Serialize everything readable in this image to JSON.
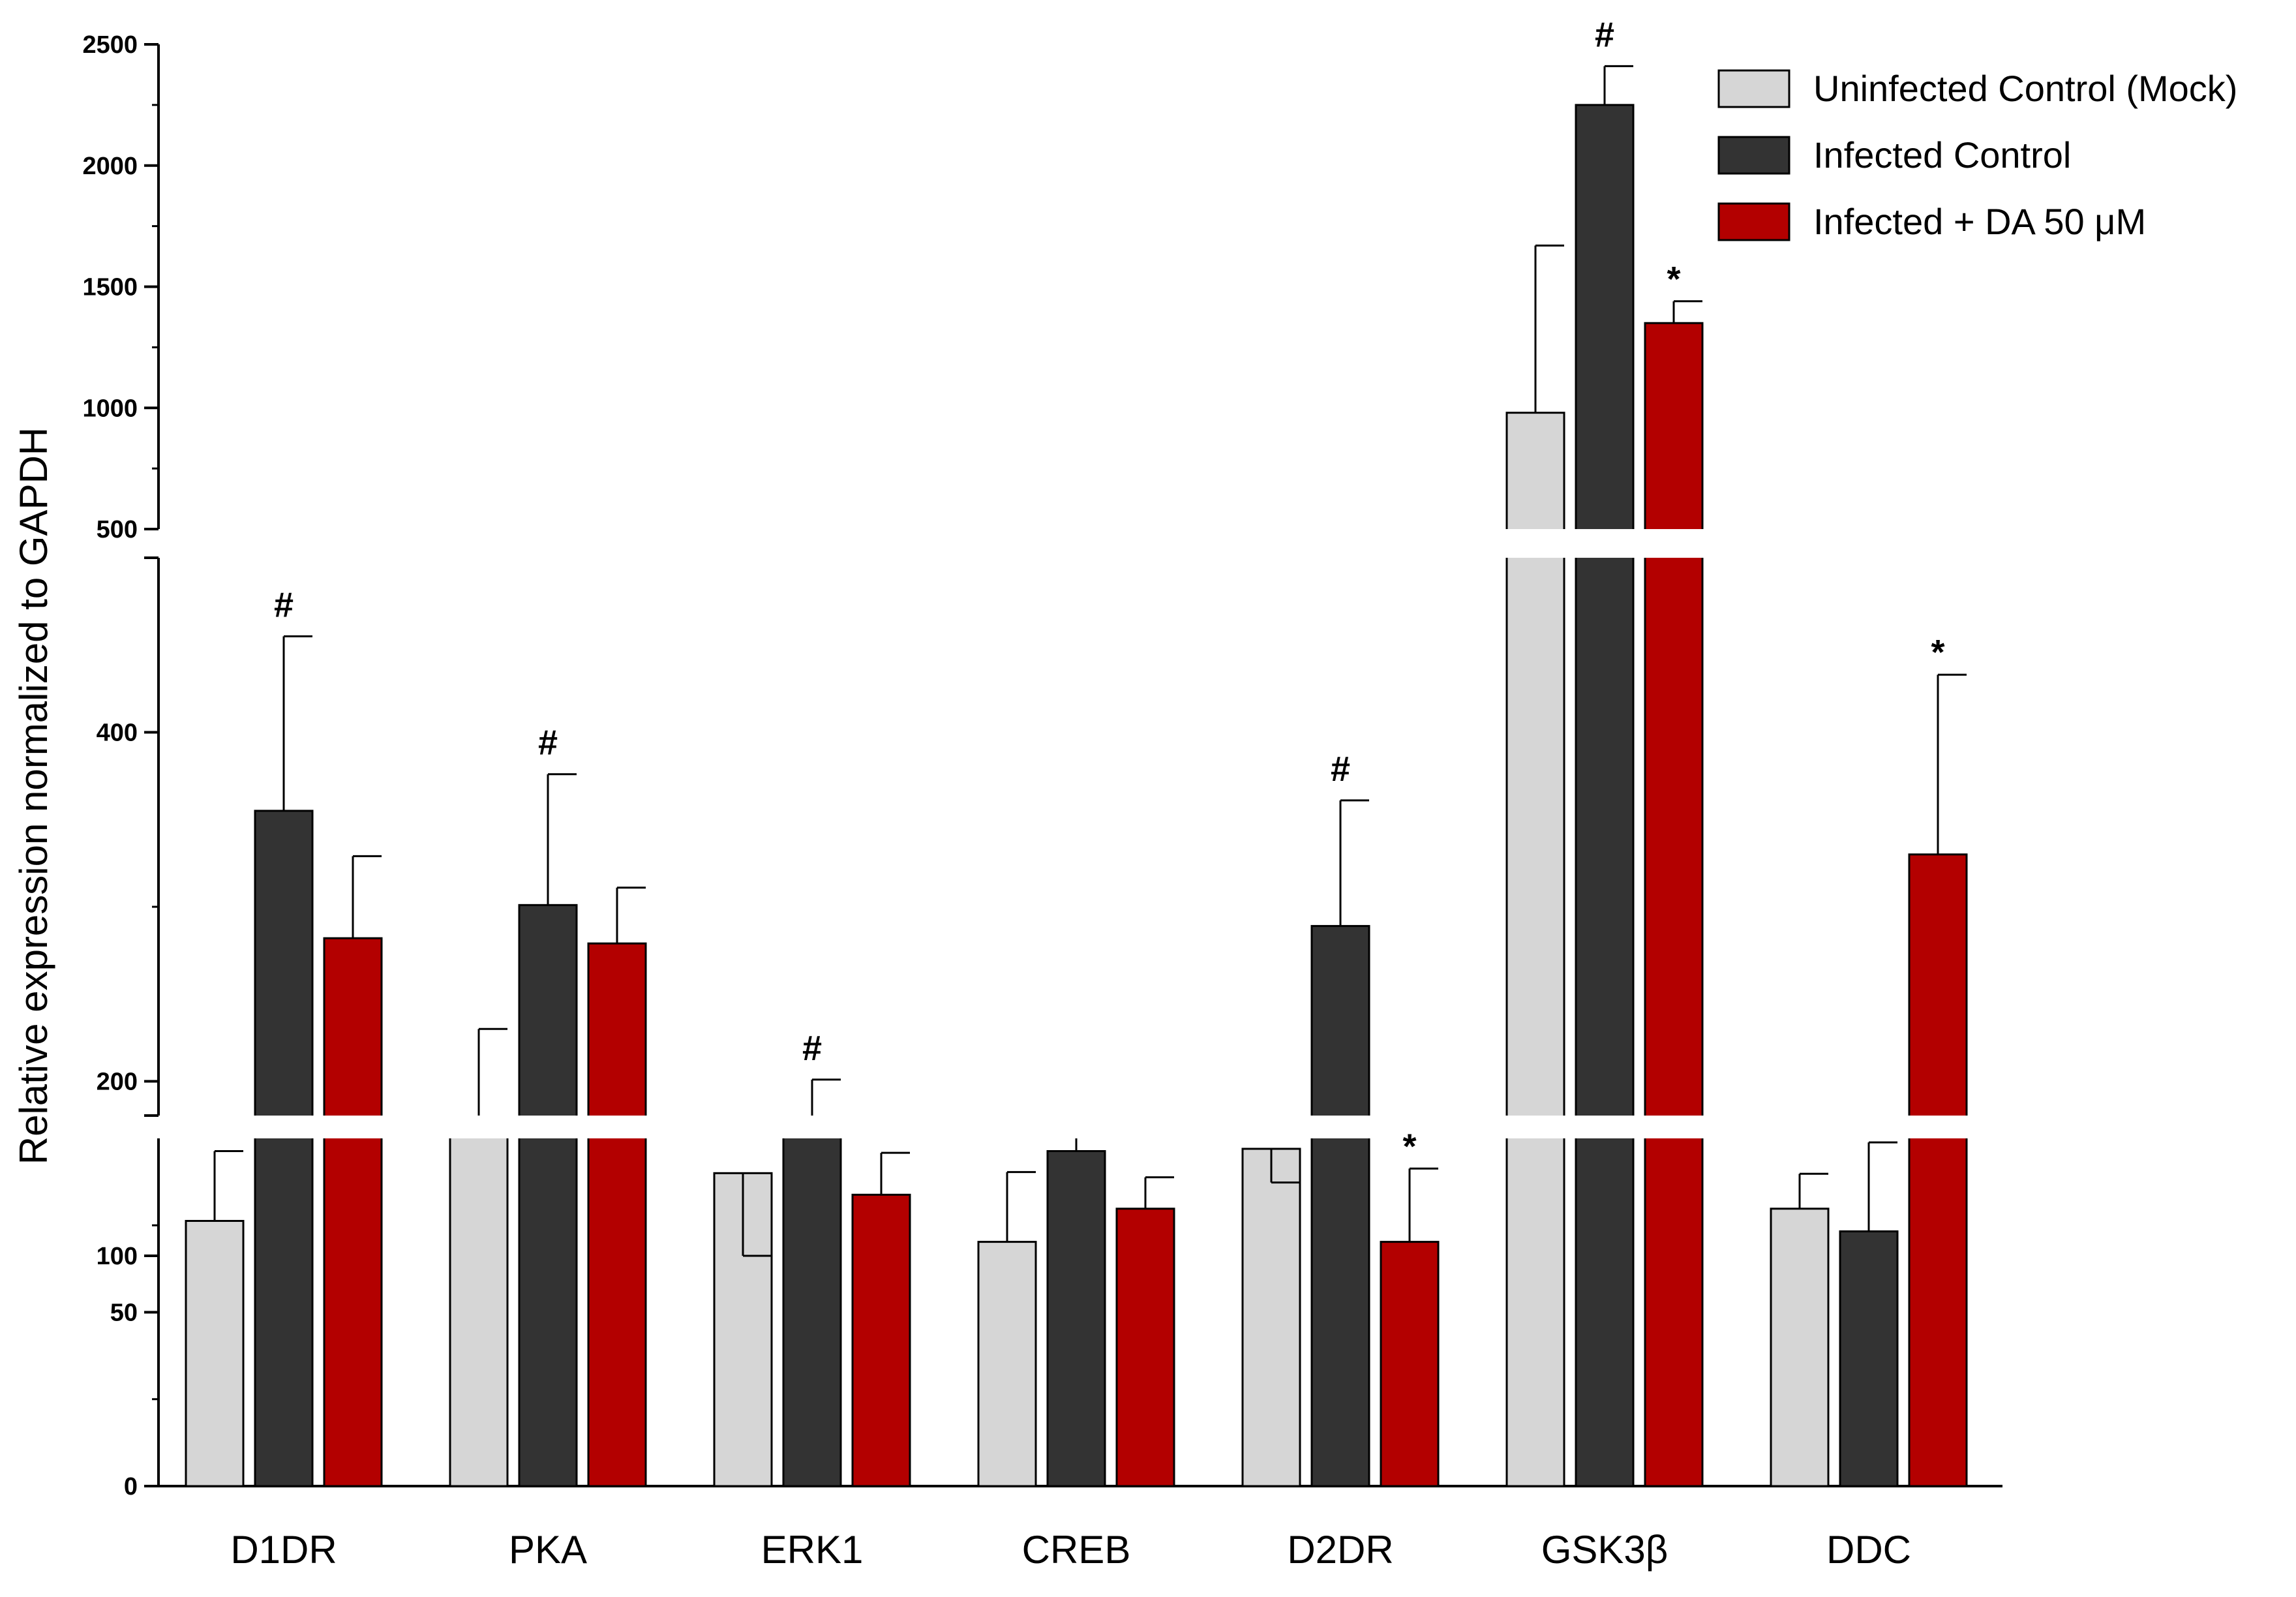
{
  "chart_data": {
    "type": "bar",
    "ylabel": "Relative expression normalized to GAPDH",
    "xlabel": "",
    "categories": [
      "D1DR",
      "PKA",
      "ERK1",
      "CREB",
      "D2DR",
      "GSK3β",
      "DDC"
    ],
    "series": [
      {
        "name": "Uninfected Control (Mock)",
        "color": "#d6d6d6",
        "values": [
          120,
          172,
          90,
          108,
          97,
          980,
          127
        ],
        "errors": [
          40,
          58,
          10,
          40,
          45,
          690,
          20
        ]
      },
      {
        "name": "Infected Control",
        "color": "#333333",
        "values": [
          355,
          301,
          171,
          160,
          289,
          2250,
          114
        ],
        "errors": [
          100,
          75,
          30,
          15,
          72,
          160,
          51
        ]
      },
      {
        "name": "Infected + DA 50 μM",
        "color": "#b30000",
        "values": [
          282,
          279,
          135,
          127,
          108,
          1350,
          330
        ],
        "errors": [
          47,
          32,
          24,
          18,
          42,
          90,
          103
        ]
      }
    ],
    "significance": [
      {
        "series": 1,
        "category": 0,
        "symbol": "#"
      },
      {
        "series": 1,
        "category": 1,
        "symbol": "#"
      },
      {
        "series": 1,
        "category": 2,
        "symbol": "#"
      },
      {
        "series": 1,
        "category": 4,
        "symbol": "#"
      },
      {
        "series": 1,
        "category": 5,
        "symbol": "#"
      },
      {
        "series": 2,
        "category": 4,
        "symbol": "*"
      },
      {
        "series": 2,
        "category": 5,
        "symbol": "*"
      },
      {
        "series": 2,
        "category": 6,
        "symbol": "*"
      }
    ],
    "y_axis_segments": [
      {
        "range": [
          0,
          100
        ],
        "ticks": [
          "0",
          "50",
          "100"
        ]
      },
      {
        "range": [
          100,
          500
        ],
        "ticks": [
          "200",
          "400"
        ]
      },
      {
        "range": [
          500,
          2500
        ],
        "ticks": [
          "500",
          "1000",
          "1500",
          "2000",
          "2500"
        ]
      }
    ],
    "legend_position": "top-right",
    "grid": false
  }
}
